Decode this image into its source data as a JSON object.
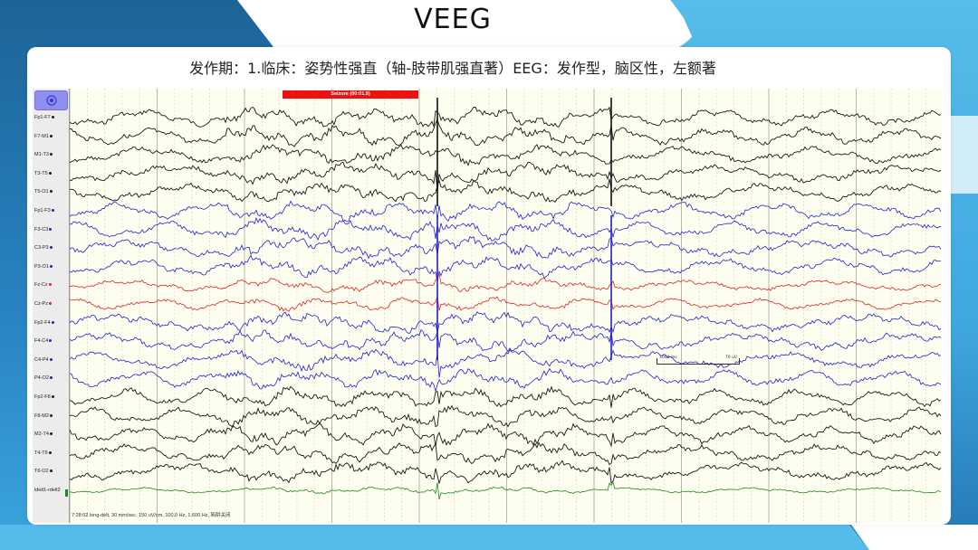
{
  "slide": {
    "title": "VEEG",
    "subtitle": "发作期：1.临床：姿势性强直（轴-肢带肌强直著）EEG：发作型，脑区性，左额著"
  },
  "eeg_viewer": {
    "top_button_icon": "target-icon",
    "seizure_marker": "Seizure (00:01.9)",
    "status_text": "7:28:02 long-delt, 30 mm/sec, 150 uV/cm, 100.0 Hz, 1.600 Hz, 陷阱关闭",
    "scale_bar": {
      "time_label": "1000 ms",
      "amp_label": "70 uV"
    },
    "colors": {
      "black": "#1a1a1a",
      "blue": "#2222cc",
      "red": "#dd2222",
      "green": "#1a8a1a",
      "seizure": "#ee1111",
      "grid_bg": "#fdfdf0"
    },
    "channels": [
      {
        "label": "Fp1-F7",
        "color": "black"
      },
      {
        "label": "F7-M1",
        "color": "black"
      },
      {
        "label": "M1-T3",
        "color": "black"
      },
      {
        "label": "T3-T5",
        "color": "black"
      },
      {
        "label": "T5-O1",
        "color": "black"
      },
      {
        "label": "Fp1-F3",
        "color": "blue"
      },
      {
        "label": "F3-C3",
        "color": "blue"
      },
      {
        "label": "C3-P3",
        "color": "blue"
      },
      {
        "label": "P3-O1",
        "color": "blue"
      },
      {
        "label": "Fz-Cz",
        "color": "red"
      },
      {
        "label": "Cz-Pz",
        "color": "red"
      },
      {
        "label": "Fp2-F4",
        "color": "blue"
      },
      {
        "label": "F4-C4",
        "color": "blue"
      },
      {
        "label": "C4-P4",
        "color": "blue"
      },
      {
        "label": "P4-O2",
        "color": "blue"
      },
      {
        "label": "Fp2-F8",
        "color": "black"
      },
      {
        "label": "F8-M2",
        "color": "black"
      },
      {
        "label": "M2-T4",
        "color": "black"
      },
      {
        "label": "T4-T6",
        "color": "black"
      },
      {
        "label": "T6-O2",
        "color": "black"
      },
      {
        "label": "ldelt1-rdelt2",
        "color": "green"
      }
    ]
  }
}
